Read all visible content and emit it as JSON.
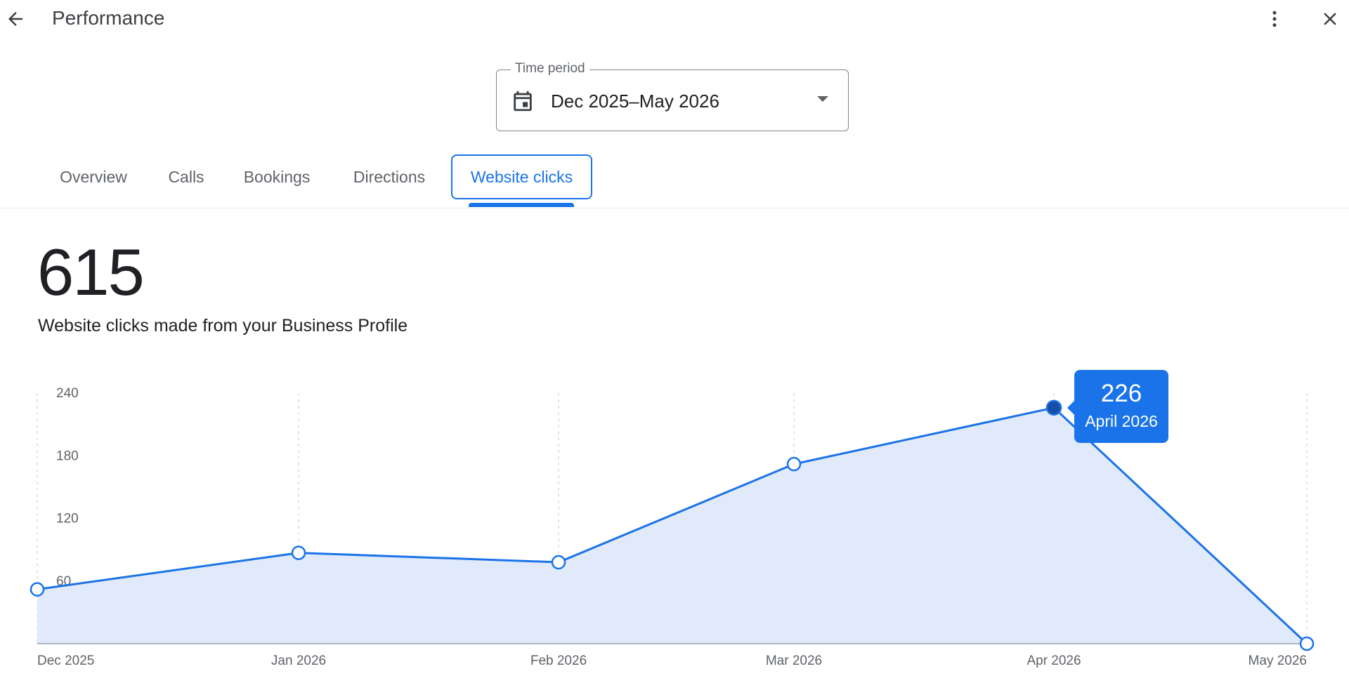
{
  "header": {
    "title": "Performance",
    "back_icon": "arrow-back-icon",
    "more_icon": "more-vert-icon",
    "close_icon": "close-icon"
  },
  "time_period": {
    "label": "Time period",
    "value": "Dec 2025–May 2026",
    "icon": "calendar-icon"
  },
  "tabs": [
    {
      "label": "Overview",
      "active": false
    },
    {
      "label": "Calls",
      "active": false
    },
    {
      "label": "Bookings",
      "active": false
    },
    {
      "label": "Directions",
      "active": false
    },
    {
      "label": "Website clicks",
      "active": true
    }
  ],
  "metric": {
    "value": "615",
    "description": "Website clicks made from your Business Profile"
  },
  "tooltip": {
    "value": "226",
    "label": "April 2026"
  },
  "colors": {
    "accent": "#1a73e8",
    "area_fill": "#e0eafb",
    "selected_point": "#174ea6"
  },
  "chart_data": {
    "type": "area",
    "categories": [
      "Dec 2025",
      "Jan 2026",
      "Feb 2026",
      "Mar 2026",
      "Apr 2026",
      "May 2026"
    ],
    "values": [
      52,
      87,
      78,
      172,
      226,
      0
    ],
    "ylim": [
      0,
      240
    ],
    "yticks": [
      60,
      120,
      180,
      240
    ],
    "selected_index": 4,
    "grid": "vertical-dashed"
  }
}
